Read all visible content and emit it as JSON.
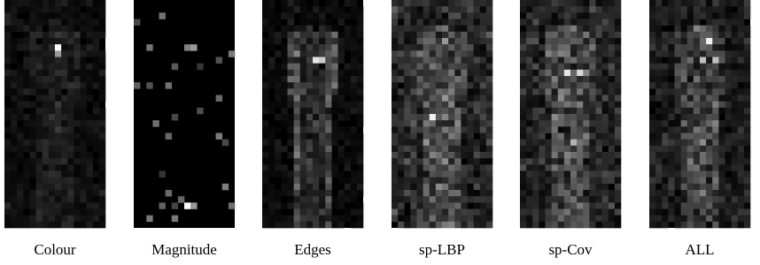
{
  "figure": {
    "panels": [
      {
        "caption": "Colour"
      },
      {
        "caption": "Magnitude"
      },
      {
        "caption": "Edges"
      },
      {
        "caption": "sp-LBP"
      },
      {
        "caption": "sp-Cov"
      },
      {
        "caption": "ALL"
      }
    ]
  }
}
